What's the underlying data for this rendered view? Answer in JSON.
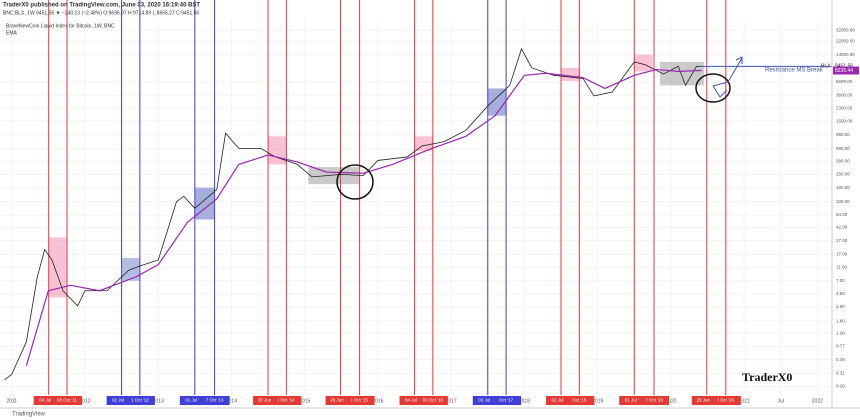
{
  "chart_data": {
    "type": "line",
    "title": "TraderX0 published on TradingView.com, June 03, 2020 16:19:40 BST",
    "subtitle": "BNC:BLX, 1W 9451.56 ▼ −240.13 (−2.48%) O:9696.97 H:9714.89 L:8655.27 C:9451.56",
    "log_scale": true,
    "xlim": [
      2010.84,
      2022.2
    ],
    "xticks": [
      2011,
      2012,
      2013,
      2014,
      2015,
      2016,
      2017,
      2018,
      2019,
      2020,
      2021,
      {
        "value": 2021.5,
        "label": "Jul"
      },
      2022
    ],
    "ylim": [
      0.15,
      45000
    ],
    "yticks": [
      {
        "value": 0.2,
        "label": "0.20"
      },
      {
        "value": 0.31,
        "label": "0.31"
      },
      {
        "value": 0.49,
        "label": "0.49"
      },
      {
        "value": 0.77,
        "label": "0.77"
      },
      {
        "value": 1.2,
        "label": "1.20"
      },
      {
        "value": 1.8,
        "label": "1.80"
      },
      {
        "value": 2.9,
        "label": "2.90"
      },
      {
        "value": 4.5,
        "label": "4.50"
      },
      {
        "value": 7,
        "label": "7.00"
      },
      {
        "value": 11,
        "label": "11.00"
      },
      {
        "value": 17,
        "label": "17.00"
      },
      {
        "value": 27,
        "label": "27.00"
      },
      {
        "value": 42,
        "label": "42.00"
      },
      {
        "value": 64,
        "label": "64.00"
      },
      {
        "value": 100,
        "label": "100.00"
      },
      {
        "value": 160,
        "label": "160.00"
      },
      {
        "value": 250,
        "label": "250.00"
      },
      {
        "value": 390,
        "label": "390.00"
      },
      {
        "value": 590,
        "label": "590.00"
      },
      {
        "value": 950,
        "label": "950.00"
      },
      {
        "value": 1500,
        "label": "1500.00"
      },
      {
        "value": 2300,
        "label": "2300.00"
      },
      {
        "value": 3600,
        "label": "3600.00"
      },
      {
        "value": 5600,
        "label": "5600.00"
      },
      {
        "value": 14000,
        "label": "14000.00"
      },
      {
        "value": 22000,
        "label": "22000.00"
      },
      {
        "value": 32000,
        "label": "32000.00"
      }
    ],
    "series": [
      {
        "name": "BraveNewCoin Liquid Index for Bitcoin, 1W, BNC",
        "color": "#222222",
        "price_label": "BLX",
        "x": [
          2010.9,
          2011.0,
          2011.2,
          2011.35,
          2011.45,
          2011.55,
          2011.7,
          2011.9,
          2012.0,
          2012.3,
          2012.6,
          2012.8,
          2013.0,
          2013.25,
          2013.35,
          2013.5,
          2013.8,
          2013.92,
          2014.1,
          2014.4,
          2014.6,
          2014.9,
          2015.1,
          2015.5,
          2015.8,
          2016.0,
          2016.4,
          2016.6,
          2016.9,
          2017.2,
          2017.5,
          2017.8,
          2017.96,
          2018.1,
          2018.4,
          2018.8,
          2018.95,
          2019.2,
          2019.5,
          2019.65,
          2019.9,
          2020.1,
          2020.2,
          2020.35,
          2020.42
        ],
        "values": [
          0.25,
          0.3,
          0.9,
          8,
          20,
          14,
          5,
          3,
          5,
          5,
          10,
          12,
          14,
          100,
          120,
          80,
          150,
          1000,
          600,
          600,
          450,
          350,
          230,
          250,
          240,
          400,
          450,
          650,
          750,
          1100,
          2500,
          5000,
          17000,
          9000,
          7000,
          6300,
          3500,
          4000,
          11000,
          10000,
          7300,
          9500,
          5000,
          9500,
          9451.56
        ]
      },
      {
        "name": "EMA",
        "color": "#9c27b0",
        "x": [
          2011.2,
          2011.5,
          2011.8,
          2012.2,
          2012.7,
          2013.0,
          2013.4,
          2013.8,
          2014.1,
          2014.5,
          2014.9,
          2015.3,
          2015.8,
          2016.2,
          2016.7,
          2017.2,
          2017.6,
          2018.0,
          2018.3,
          2018.8,
          2019.1,
          2019.5,
          2019.8,
          2020.1,
          2020.42
        ],
        "values": [
          0.4,
          5,
          6,
          5,
          8,
          12,
          50,
          110,
          350,
          480,
          380,
          270,
          260,
          350,
          580,
          900,
          1800,
          7000,
          7500,
          6500,
          4500,
          7000,
          8500,
          8000,
          8235.44
        ]
      }
    ],
    "markers": [
      {
        "x": 2011.505,
        "label": "04 Jul '11",
        "color": "#e53935"
      },
      {
        "x": 2011.755,
        "label": "03 Oct '11",
        "color": "#e53935"
      },
      {
        "x": 2012.5,
        "label": "02 Jul '12",
        "color": "#3f3fd8"
      },
      {
        "x": 2012.75,
        "label": "1 Oct '12",
        "color": "#3f3fd8"
      },
      {
        "x": 2013.5,
        "label": "01 Jul '13",
        "color": "#3f3fd8"
      },
      {
        "x": 2013.77,
        "label": "7 Oct '13",
        "color": "#3f3fd8"
      },
      {
        "x": 2014.5,
        "label": "30 Jun '14",
        "color": "#e53935"
      },
      {
        "x": 2014.75,
        "label": "I Oct '14",
        "color": "#e53935"
      },
      {
        "x": 2015.49,
        "label": "29 Jun '15",
        "color": "#e53935"
      },
      {
        "x": 2015.75,
        "label": "I Oct '15",
        "color": "#e53935"
      },
      {
        "x": 2016.5,
        "label": "04 Jul '16",
        "color": "#e53935"
      },
      {
        "x": 2016.75,
        "label": "03 Oct '16",
        "color": "#e53935"
      },
      {
        "x": 2017.5,
        "label": "03 Jul '17",
        "color": "#3f3fd8"
      },
      {
        "x": 2017.75,
        "label": "Oct '17",
        "color": "#3f3fd8"
      },
      {
        "x": 2018.5,
        "label": "02 Jul '18",
        "color": "#e53935"
      },
      {
        "x": 2018.75,
        "label": "Oct '18",
        "color": "#e53935"
      },
      {
        "x": 2019.5,
        "label": "01 Jul '19",
        "color": "#e53935"
      },
      {
        "x": 2019.77,
        "label": "7 Oct '19",
        "color": "#e53935"
      },
      {
        "x": 2020.49,
        "label": "29 Jun '20",
        "color": "#e53935"
      },
      {
        "x": 2020.75,
        "label": "I Oct '20",
        "color": "#e53935"
      }
    ],
    "zones": [
      {
        "x0": 2011.505,
        "x1": 2011.755,
        "y0": 4,
        "y1": 30,
        "color": "#f48fb1"
      },
      {
        "x0": 2012.5,
        "x1": 2012.75,
        "y0": 7,
        "y1": 15,
        "color": "#7986cb"
      },
      {
        "x0": 2013.5,
        "x1": 2013.77,
        "y0": 55,
        "y1": 160,
        "color": "#5c6bc0"
      },
      {
        "x0": 2014.5,
        "x1": 2014.75,
        "y0": 350,
        "y1": 900,
        "color": "#f48fb1"
      },
      {
        "x0": 2015.05,
        "x1": 2015.75,
        "y0": 180,
        "y1": 320,
        "color": "#9e9e9e"
      },
      {
        "x0": 2016.5,
        "x1": 2016.75,
        "y0": 550,
        "y1": 900,
        "color": "#f48fb1"
      },
      {
        "x0": 2017.5,
        "x1": 2017.75,
        "y0": 1800,
        "y1": 4500,
        "color": "#5c6bc0"
      },
      {
        "x0": 2018.5,
        "x1": 2018.75,
        "y0": 5800,
        "y1": 9000,
        "color": "#f48fb1"
      },
      {
        "x0": 2019.5,
        "x1": 2019.75,
        "y0": 8000,
        "y1": 14000,
        "color": "#f48fb1"
      },
      {
        "x0": 2019.85,
        "x1": 2020.45,
        "y0": 5000,
        "y1": 11000,
        "color": "#9e9e9e"
      }
    ],
    "annotations": [
      "Resistance MS Break",
      "TraderX0"
    ],
    "watermark": "TradingView"
  }
}
